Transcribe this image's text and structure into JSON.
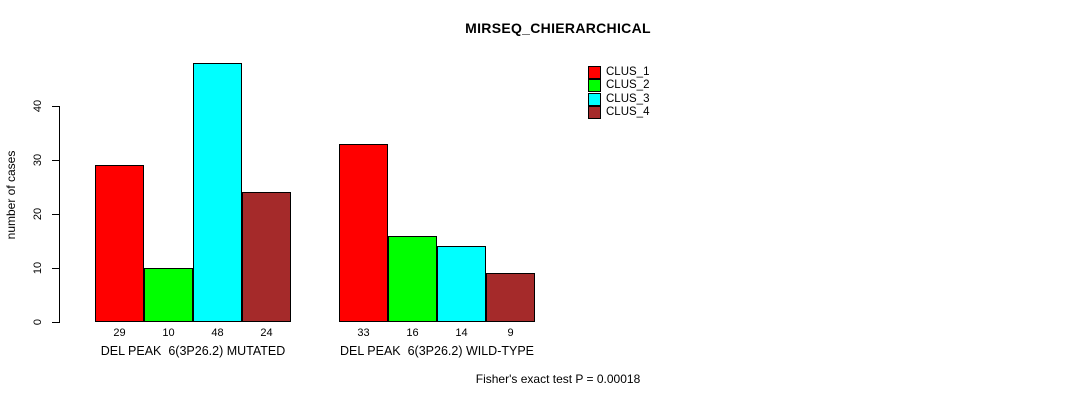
{
  "title": "MIRSEQ_CHIERARCHICAL",
  "annotation": "Fisher's exact test P = 0.00018",
  "chart_data": {
    "type": "bar",
    "title": "MIRSEQ_CHIERARCHICAL",
    "xlabel": "",
    "ylabel": "number of cases",
    "ylim": [
      0,
      40
    ],
    "yticks": [
      0,
      10,
      20,
      30,
      40
    ],
    "grid": false,
    "legend_position": "top-right",
    "bar_value_labels_shown": true,
    "categories": [
      "DEL PEAK  6(3P26.2) MUTATED",
      "DEL PEAK  6(3P26.2) WILD-TYPE"
    ],
    "series": [
      {
        "name": "CLUS_1",
        "color": "#ff0000",
        "values": [
          29,
          33
        ]
      },
      {
        "name": "CLUS_2",
        "color": "#00ff00",
        "values": [
          10,
          16
        ]
      },
      {
        "name": "CLUS_3",
        "color": "#00ffff",
        "values": [
          48,
          14
        ]
      },
      {
        "name": "CLUS_4",
        "color": "#a52a2a",
        "values": [
          24,
          9
        ]
      }
    ],
    "colors": {
      "background": "#ffffff",
      "bar_border": "#000000",
      "axis": "#000000",
      "text": "#000000"
    }
  }
}
